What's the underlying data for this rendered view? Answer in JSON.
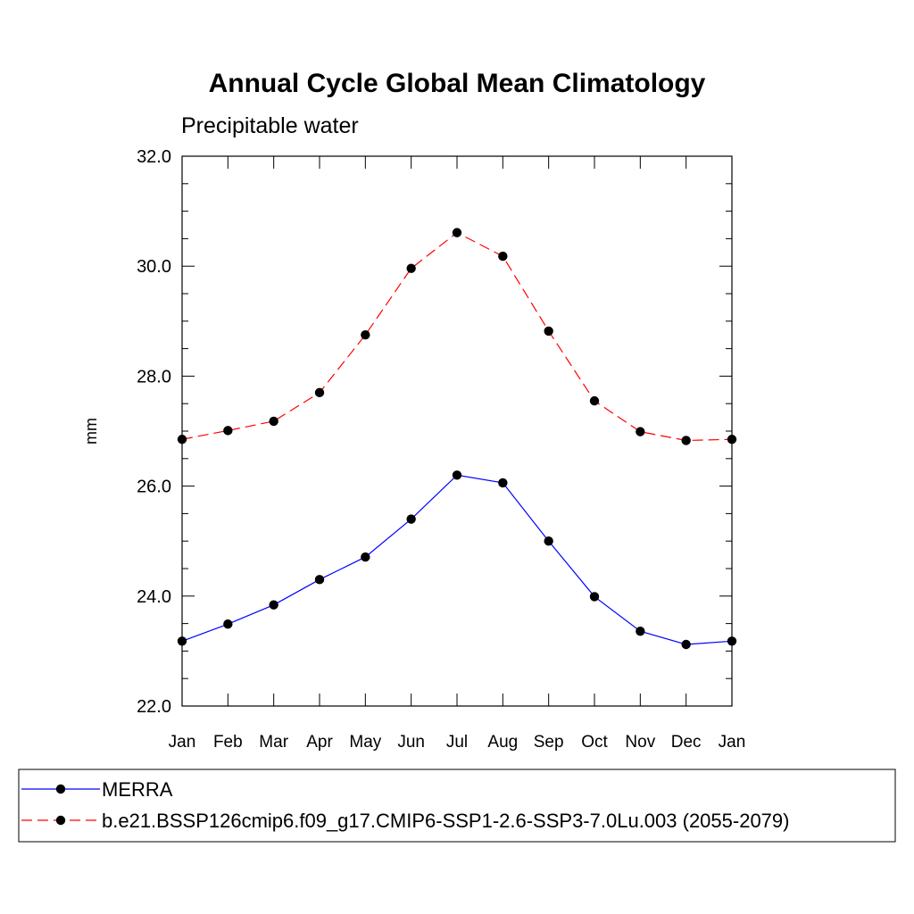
{
  "chart_data": {
    "type": "line",
    "title": "Annual Cycle Global Mean Climatology",
    "subtitle": "Precipitable water",
    "xlabel": "",
    "ylabel": "mm",
    "categories": [
      "Jan",
      "Feb",
      "Mar",
      "Apr",
      "May",
      "Jun",
      "Jul",
      "Aug",
      "Sep",
      "Oct",
      "Nov",
      "Dec",
      "Jan"
    ],
    "ylim": [
      22.0,
      32.0
    ],
    "yticks": [
      "22.0",
      "24.0",
      "26.0",
      "28.0",
      "30.0",
      "32.0"
    ],
    "grid": false,
    "legend": "bottom",
    "series": [
      {
        "name": "MERRA",
        "color": "#0000ff",
        "dash": "solid",
        "marker": "circle",
        "values": [
          23.18,
          23.49,
          23.84,
          24.3,
          24.71,
          25.4,
          26.2,
          26.06,
          25.0,
          23.99,
          23.36,
          23.12,
          23.18
        ]
      },
      {
        "name": "b.e21.BSSP126cmip6.f09_g17.CMIP6-SSP1-2.6-SSP3-7.0Lu.003 (2055-2079)",
        "color": "#ff0000",
        "dash": "dashed",
        "marker": "circle",
        "values": [
          26.85,
          27.01,
          27.18,
          27.7,
          28.75,
          29.96,
          30.61,
          30.18,
          28.82,
          27.55,
          26.99,
          26.83,
          26.85
        ]
      }
    ]
  }
}
